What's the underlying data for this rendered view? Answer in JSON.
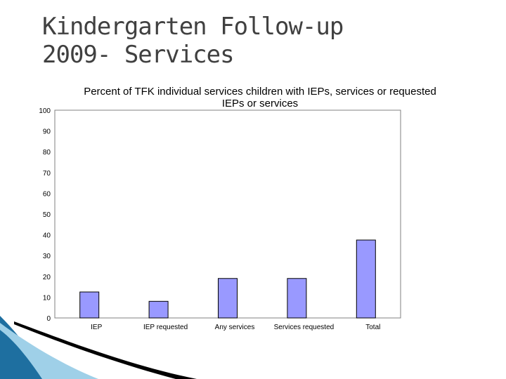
{
  "slide": {
    "title_line1": "Kindergarten Follow-up",
    "title_line2": "2009- Services"
  },
  "chart_data": {
    "type": "bar",
    "title": "Percent of TFK individual services children with IEPs, services or requested IEPs or services",
    "categories": [
      "IEP",
      "IEP requested",
      "Any services",
      "Services requested",
      "Total"
    ],
    "values": [
      12.5,
      8,
      19,
      19,
      37.5
    ],
    "ylim": [
      0,
      100
    ],
    "yticks": [
      "0",
      "10",
      "20",
      "30",
      "40",
      "50",
      "60",
      "70",
      "80",
      "90",
      "100"
    ],
    "xlabel": "",
    "ylabel": "",
    "grid": false,
    "colors": {
      "bar_fill": "#9999ff",
      "bar_stroke": "#000000",
      "plot_border": "#808080",
      "decor_blue": "#1e6fa0",
      "decor_light": "#9fd0e8"
    }
  }
}
